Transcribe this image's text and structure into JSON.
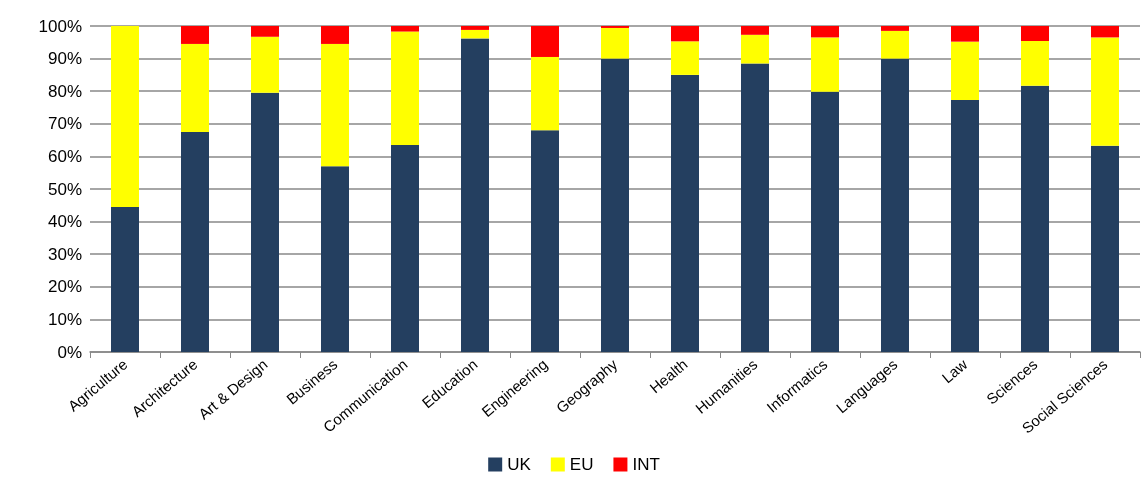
{
  "chart_data": {
    "type": "bar",
    "stacked": true,
    "categories": [
      "Agriculture",
      "Architecture",
      "Art & Design",
      "Business",
      "Communication",
      "Education",
      "Engineering",
      "Geography",
      "Health",
      "Humanities",
      "Informatics",
      "Languages",
      "Law",
      "Sciences",
      "Social Sciences"
    ],
    "series": [
      {
        "name": "UK",
        "color": "#243f60",
        "values": [
          44.5,
          67.5,
          79.5,
          57,
          63.5,
          96.2,
          68,
          90,
          85,
          88.5,
          79.8,
          90,
          77.3,
          81.7,
          63.3
        ]
      },
      {
        "name": "EU",
        "color": "#ffff00",
        "values": [
          55.5,
          27,
          17.2,
          37.5,
          34.8,
          2.6,
          22.5,
          9.4,
          10.3,
          8.8,
          16.7,
          8.5,
          17.9,
          13.7,
          33.2
        ]
      },
      {
        "name": "INT",
        "color": "#ff0000",
        "values": [
          0,
          5.5,
          3.3,
          5.5,
          1.7,
          1.2,
          9.5,
          0.6,
          4.7,
          2.7,
          3.5,
          1.5,
          4.8,
          4.6,
          3.5
        ]
      }
    ],
    "ylim": [
      0,
      100
    ],
    "yticks": [
      {
        "value": 0,
        "label": "0%"
      },
      {
        "value": 10,
        "label": "10%"
      },
      {
        "value": 20,
        "label": "20%"
      },
      {
        "value": 30,
        "label": "30%"
      },
      {
        "value": 40,
        "label": "40%"
      },
      {
        "value": 50,
        "label": "50%"
      },
      {
        "value": 60,
        "label": "60%"
      },
      {
        "value": 70,
        "label": "70%"
      },
      {
        "value": 80,
        "label": "80%"
      },
      {
        "value": 90,
        "label": "90%"
      },
      {
        "value": 100,
        "label": "100%"
      }
    ],
    "grid": "y",
    "legend": "bottom"
  }
}
